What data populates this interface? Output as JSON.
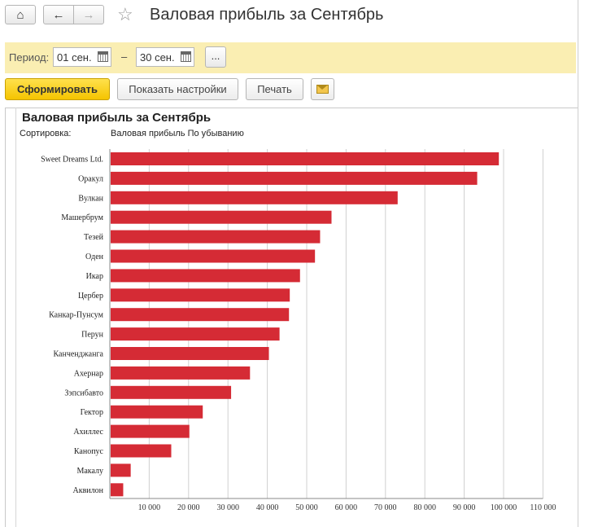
{
  "header": {
    "title": "Валовая прибыль за Сентябрь",
    "home_icon": "home-icon",
    "back_icon": "arrow-left-icon",
    "forward_icon": "arrow-right-icon",
    "favorite_icon": "star-icon"
  },
  "period": {
    "label": "Период:",
    "from": "01 сен.",
    "separator": "–",
    "to": "30 сен.",
    "more_label": "..."
  },
  "toolbar": {
    "generate_label": "Сформировать",
    "settings_label": "Показать настройки",
    "print_label": "Печать",
    "mail_icon": "envelope-icon"
  },
  "report": {
    "title": "Валовая прибыль за Сентябрь",
    "sort_label": "Сортировка:",
    "sort_value": "Валовая прибыль По убыванию"
  },
  "colors": {
    "bar": "#d52b35",
    "accent": "#f5c400",
    "period_bg": "#faeeb2"
  },
  "chart_data": {
    "type": "bar",
    "orientation": "horizontal",
    "categories": [
      "Sweet Dreams Ltd.",
      "Оракул",
      "Вулкан",
      "Машербрум",
      "Тезей",
      "Оден",
      "Икар",
      "Цербер",
      "Канкар-Пунсум",
      "Перун",
      "Канченджанга",
      "Ахернар",
      "Зэпсибавто",
      "Гектор",
      "Ахиллес",
      "Канопус",
      "Макалу",
      "Аквилон"
    ],
    "values": [
      98800,
      93300,
      73100,
      56300,
      53400,
      52100,
      48300,
      45700,
      45500,
      43100,
      40400,
      35600,
      30800,
      23600,
      20200,
      15600,
      5300,
      3400
    ],
    "tick_labels": [
      "10 000",
      "20 000",
      "30 000",
      "40 000",
      "50 000",
      "60 000",
      "70 000",
      "80 000",
      "90 000",
      "100 000",
      "110 000"
    ],
    "xlim": [
      0,
      110000
    ],
    "grid": true
  }
}
